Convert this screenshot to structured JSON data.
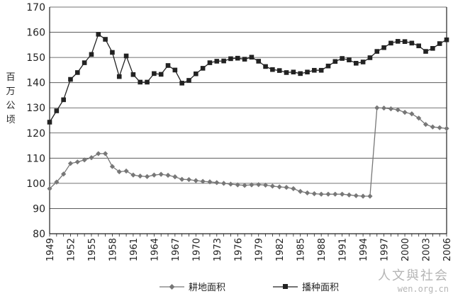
{
  "chart_data": {
    "type": "line",
    "title": "",
    "xlabel": "",
    "ylabel": "百万公顷",
    "ylim": [
      80,
      170
    ],
    "yticks": [
      80,
      90,
      100,
      110,
      120,
      130,
      140,
      150,
      160,
      170
    ],
    "xlim": [
      1949,
      2006
    ],
    "xticks": [
      "1949",
      "1952",
      "1955",
      "1958",
      "1961",
      "1964",
      "1967",
      "1970",
      "1973",
      "1976",
      "1979",
      "1982",
      "1985",
      "1988",
      "1991",
      "1994",
      "1997",
      "2000",
      "2003",
      "2006"
    ],
    "grid": "horizontal",
    "legend_position": "bottom",
    "series": [
      {
        "name": "耕地面积",
        "marker": "diamond",
        "color": "#777777",
        "x": [
          1949,
          1950,
          1951,
          1952,
          1953,
          1954,
          1955,
          1956,
          1957,
          1958,
          1959,
          1960,
          1961,
          1962,
          1963,
          1964,
          1965,
          1966,
          1967,
          1968,
          1969,
          1970,
          1971,
          1972,
          1973,
          1974,
          1975,
          1976,
          1977,
          1978,
          1979,
          1980,
          1981,
          1982,
          1983,
          1984,
          1985,
          1986,
          1987,
          1988,
          1989,
          1990,
          1991,
          1992,
          1993,
          1994,
          1995,
          1996,
          1997,
          1998,
          1999,
          2000,
          2001,
          2002,
          2003,
          2004,
          2005,
          2006
        ],
        "values": [
          97.9,
          100.5,
          103.7,
          107.9,
          108.5,
          109.3,
          110.2,
          111.8,
          111.8,
          106.7,
          104.6,
          104.9,
          103.3,
          102.9,
          102.7,
          103.3,
          103.6,
          103.2,
          102.6,
          101.6,
          101.5,
          101.1,
          100.8,
          100.6,
          100.3,
          100.0,
          99.7,
          99.4,
          99.2,
          99.4,
          99.5,
          99.3,
          98.9,
          98.6,
          98.4,
          97.9,
          96.8,
          96.2,
          95.9,
          95.7,
          95.7,
          95.7,
          95.7,
          95.4,
          95.1,
          94.9,
          94.9,
          130.0,
          129.9,
          129.6,
          129.2,
          128.2,
          127.6,
          125.9,
          123.4,
          122.4,
          122.1,
          121.8
        ]
      },
      {
        "name": "播种面积",
        "marker": "square",
        "color": "#222222",
        "x": [
          1949,
          1950,
          1951,
          1952,
          1953,
          1954,
          1955,
          1956,
          1957,
          1958,
          1959,
          1960,
          1961,
          1962,
          1963,
          1964,
          1965,
          1966,
          1967,
          1968,
          1969,
          1970,
          1971,
          1972,
          1973,
          1974,
          1975,
          1976,
          1977,
          1978,
          1979,
          1980,
          1981,
          1982,
          1983,
          1984,
          1985,
          1986,
          1987,
          1988,
          1989,
          1990,
          1991,
          1992,
          1993,
          1994,
          1995,
          1996,
          1997,
          1998,
          1999,
          2000,
          2001,
          2002,
          2003,
          2004,
          2005,
          2006
        ],
        "values": [
          124.3,
          128.8,
          133.2,
          141.3,
          144.0,
          147.9,
          151.2,
          159.2,
          157.2,
          152.0,
          142.4,
          150.6,
          143.2,
          140.2,
          140.2,
          143.6,
          143.3,
          146.8,
          145.0,
          139.8,
          140.9,
          143.5,
          145.7,
          147.9,
          148.5,
          148.6,
          149.5,
          149.7,
          149.3,
          150.1,
          148.5,
          146.4,
          145.2,
          144.8,
          144.0,
          144.2,
          143.6,
          144.2,
          144.9,
          144.9,
          146.6,
          148.4,
          149.6,
          149.0,
          147.7,
          148.2,
          149.9,
          152.4,
          153.9,
          155.7,
          156.4,
          156.3,
          155.7,
          154.6,
          152.4,
          153.6,
          155.5,
          157.0
        ]
      }
    ]
  },
  "legend": {
    "series1_label": "耕地面积",
    "series2_label": "播种面积"
  },
  "ylabel_chars": [
    "百",
    "万",
    "公",
    "顷"
  ],
  "watermark": {
    "text": "人文與社会",
    "url": "wen.org.cn"
  }
}
